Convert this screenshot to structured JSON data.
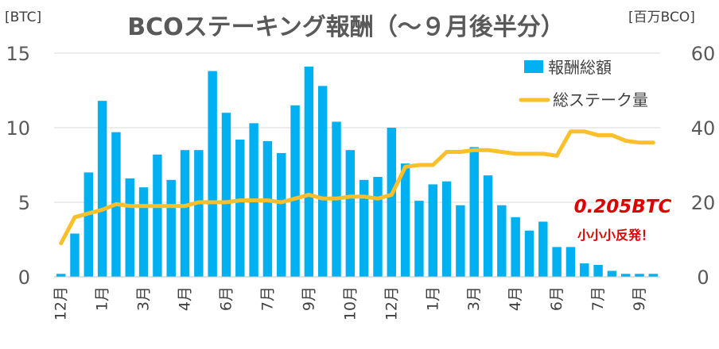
{
  "chart_data": {
    "type": "bar+line",
    "title": "BCOステーキング報酬（～９月後半分）",
    "y_left_unit": "[BTC]",
    "y_right_unit": "[百万BCO]",
    "y_left_range": [
      0,
      15
    ],
    "y_left_ticks": [
      "0",
      "5",
      "10",
      "15"
    ],
    "y_right_range": [
      0,
      60
    ],
    "y_right_ticks": [
      "0",
      "20",
      "40",
      "60"
    ],
    "grid": true,
    "legend_position": "top-right",
    "x_tick_labels": [
      {
        "i": 0,
        "label": "12月"
      },
      {
        "i": 3,
        "label": "1月"
      },
      {
        "i": 6,
        "label": "3月"
      },
      {
        "i": 9,
        "label": "4月"
      },
      {
        "i": 12,
        "label": "6月"
      },
      {
        "i": 15,
        "label": "7月"
      },
      {
        "i": 18,
        "label": "9月"
      },
      {
        "i": 21,
        "label": "10月"
      },
      {
        "i": 24,
        "label": "12月"
      },
      {
        "i": 27,
        "label": "1月"
      },
      {
        "i": 30,
        "label": "3月"
      },
      {
        "i": 33,
        "label": "4月"
      },
      {
        "i": 36,
        "label": "6月"
      },
      {
        "i": 39,
        "label": "7月"
      },
      {
        "i": 42,
        "label": "9月"
      }
    ],
    "series": [
      {
        "name": "報酬総額",
        "kind": "bar",
        "axis": "left",
        "color": "#00b0f0",
        "values": [
          0.2,
          2.9,
          7.0,
          11.8,
          9.7,
          6.6,
          6.0,
          8.2,
          6.5,
          8.5,
          8.5,
          13.8,
          11.0,
          9.2,
          10.3,
          9.1,
          8.3,
          11.5,
          14.1,
          12.8,
          10.4,
          8.5,
          6.5,
          6.7,
          10.0,
          7.6,
          5.1,
          6.2,
          6.4,
          4.8,
          8.7,
          6.8,
          4.8,
          4.0,
          3.1,
          3.7,
          2.0,
          2.0,
          0.9,
          0.8,
          0.4,
          0.2,
          0.2,
          0.2
        ]
      },
      {
        "name": "総ステーク量",
        "kind": "line",
        "axis": "right",
        "color": "#fbbf2b",
        "values": [
          9,
          16,
          17,
          18,
          19.5,
          19,
          19,
          19,
          19,
          19,
          20,
          20,
          20,
          20.5,
          20.5,
          20.5,
          20,
          21,
          22,
          21,
          21,
          21.5,
          21.5,
          21,
          22,
          29.5,
          30,
          30,
          33.5,
          33.5,
          34,
          34,
          33.5,
          33,
          33,
          33,
          32.5,
          39,
          39,
          38,
          38,
          36.5,
          36,
          36
        ]
      }
    ],
    "annotation": {
      "main": "0.205BTC",
      "sub": "小小小反発！"
    }
  }
}
